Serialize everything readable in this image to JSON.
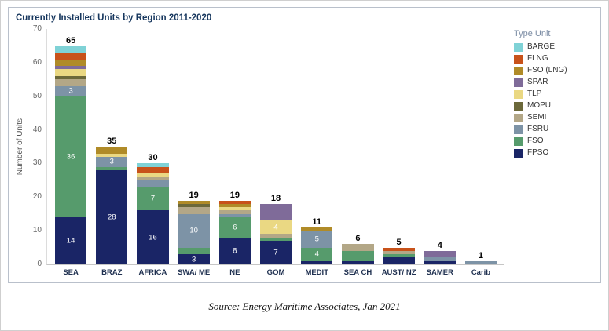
{
  "source": "Source: Energy Maritime Associates, Jan 2021",
  "chart_data": {
    "type": "bar",
    "stacked": true,
    "title": "Currently Installed Units by Region 2011-2020",
    "ylabel": "Number of Units",
    "ylim": [
      0,
      70
    ],
    "yticks": [
      0,
      10,
      20,
      30,
      40,
      50,
      60,
      70
    ],
    "grid": false,
    "legend_title": "Type Unit",
    "legend_position": "right",
    "categories": [
      "SEA",
      "BRAZ",
      "AFRICA",
      "SWA/ ME",
      "NE",
      "GOM",
      "MEDIT",
      "SEA CH",
      "AUST/ NZ",
      "SAMER",
      "Carib"
    ],
    "totals": [
      65,
      35,
      30,
      19,
      19,
      18,
      11,
      6,
      5,
      4,
      1
    ],
    "series": [
      {
        "name": "FPSO",
        "color": "#1a2566",
        "values": [
          14,
          28,
          16,
          3,
          8,
          7,
          1,
          1,
          2,
          1,
          0
        ]
      },
      {
        "name": "FSO",
        "color": "#569b6c",
        "values": [
          36,
          1,
          7,
          2,
          6,
          1,
          4,
          3,
          1,
          0,
          0
        ]
      },
      {
        "name": "FSRU",
        "color": "#7d93a6",
        "values": [
          3,
          3,
          2,
          10,
          1,
          0,
          5,
          0,
          0,
          1,
          1
        ]
      },
      {
        "name": "SEMI",
        "color": "#b3a787",
        "values": [
          2,
          0,
          1,
          2,
          1,
          1,
          0,
          2,
          1,
          0,
          0
        ]
      },
      {
        "name": "MOPU",
        "color": "#6b683a",
        "values": [
          1,
          0,
          0,
          1,
          0,
          0,
          0,
          0,
          0,
          0,
          0
        ]
      },
      {
        "name": "TLP",
        "color": "#ead883",
        "values": [
          2,
          1,
          1,
          0,
          1,
          4,
          0,
          0,
          0,
          0,
          0
        ]
      },
      {
        "name": "SPAR",
        "color": "#7f6b99",
        "values": [
          1,
          0,
          0,
          0,
          0,
          5,
          0,
          0,
          0,
          2,
          0
        ]
      },
      {
        "name": "FSO (LNG)",
        "color": "#b08b28",
        "values": [
          2,
          2,
          0,
          1,
          1,
          0,
          1,
          0,
          0,
          0,
          0
        ]
      },
      {
        "name": "FLNG",
        "color": "#c8521a",
        "values": [
          2,
          0,
          2,
          0,
          1,
          0,
          0,
          0,
          1,
          0,
          0
        ]
      },
      {
        "name": "BARGE",
        "color": "#7fd2d6",
        "values": [
          2,
          0,
          1,
          0,
          0,
          0,
          0,
          0,
          0,
          0,
          0
        ]
      }
    ],
    "segment_labels": {
      "SEA": {
        "FPSO": "14",
        "FSO": "36",
        "FSRU": "3"
      },
      "BRAZ": {
        "FPSO": "28",
        "FSRU": "3"
      },
      "AFRICA": {
        "FPSO": "16",
        "FSO": "7"
      },
      "SWA/ ME": {
        "FPSO": "3",
        "FSRU": "10"
      },
      "NE": {
        "FPSO": "8",
        "FSO": "6"
      },
      "GOM": {
        "FPSO": "7",
        "TLP": "4"
      },
      "MEDIT": {
        "FSO": "4",
        "FSRU": "5"
      }
    }
  }
}
